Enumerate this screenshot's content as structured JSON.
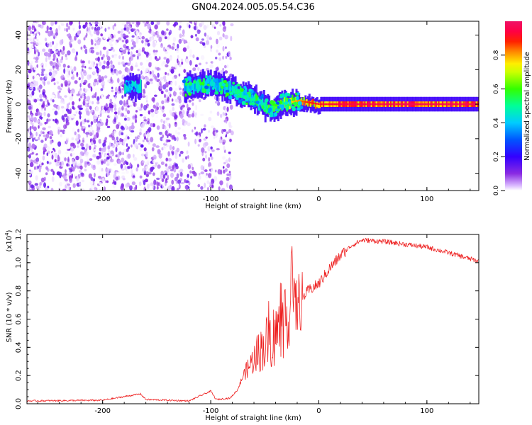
{
  "title": "GN04.2024.005.05.54.C36",
  "chart_data": [
    {
      "type": "heatmap",
      "name": "spectrogram",
      "title": "GN04.2024.005.05.54.C36",
      "xlabel": "Height of straight line (km)",
      "ylabel": "Frequency (Hz)",
      "xlim": [
        -270,
        148
      ],
      "ylim": [
        -50,
        48
      ],
      "x_ticks": [
        "-200",
        "-100",
        "0",
        "100"
      ],
      "x_tick_values": [
        -200,
        -100,
        0,
        100
      ],
      "y_ticks": [
        "40",
        "20",
        "0",
        "-20",
        "-40"
      ],
      "y_tick_values": [
        40,
        20,
        0,
        -20,
        -40
      ],
      "colorbar": {
        "label": "Normalized spectral amplitude",
        "range": [
          0,
          1
        ],
        "ticks": [
          "0.0",
          "0.2",
          "0.4",
          "0.6",
          "0.8"
        ],
        "tick_values": [
          0.0,
          0.2,
          0.4,
          0.6,
          0.8
        ],
        "colormap": "rainbow (white-violet-blue-cyan-green-yellow-orange-red-magenta)"
      },
      "features": {
        "noise_region_x": [
          -270,
          -85
        ],
        "noise_amplitude_range": [
          0.0,
          0.15
        ],
        "signal_trace_x": [
          -180,
          148
        ],
        "signal_center_freq_hz": [
          {
            "x": -175,
            "f": 10
          },
          {
            "x": -120,
            "f": 10
          },
          {
            "x": -100,
            "f": 12
          },
          {
            "x": -80,
            "f": 8
          },
          {
            "x": -60,
            "f": 3
          },
          {
            "x": -45,
            "f": -3
          },
          {
            "x": -35,
            "f": 0
          },
          {
            "x": -20,
            "f": 2
          },
          {
            "x": 0,
            "f": 0
          },
          {
            "x": 148,
            "f": 0
          }
        ],
        "signal_amplitude_trend": [
          {
            "x": -120,
            "a": 0.45
          },
          {
            "x": -80,
            "a": 0.45
          },
          {
            "x": -40,
            "a": 0.6
          },
          {
            "x": -10,
            "a": 0.85
          },
          {
            "x": 20,
            "a": 0.9
          },
          {
            "x": 148,
            "a": 0.95
          }
        ]
      }
    },
    {
      "type": "line",
      "name": "snr",
      "xlabel": "Height of straight line (km)",
      "ylabel": "SNR (10 * v/v)",
      "y_multiplier": "(x10",
      "y_multiplier_exp": "4",
      "xlim": [
        -270,
        148
      ],
      "ylim": [
        0.0,
        1.2
      ],
      "x_ticks": [
        "-200",
        "-100",
        "0",
        "100"
      ],
      "x_tick_values": [
        -200,
        -100,
        0,
        100
      ],
      "y_ticks": [
        "0.0",
        "0.2",
        "0.4",
        "0.6",
        "0.8",
        "1.0",
        "1.2"
      ],
      "y_tick_values": [
        0.0,
        0.2,
        0.4,
        0.6,
        0.8,
        1.0,
        1.2
      ],
      "color": "#ee2222",
      "series": [
        {
          "name": "SNR",
          "points": [
            [
              -270,
              0.02
            ],
            [
              -200,
              0.025
            ],
            [
              -165,
              0.07
            ],
            [
              -160,
              0.03
            ],
            [
              -120,
              0.02
            ],
            [
              -100,
              0.09
            ],
            [
              -95,
              0.03
            ],
            [
              -82,
              0.04
            ],
            [
              -75,
              0.1
            ],
            [
              -70,
              0.2
            ],
            [
              -60,
              0.32
            ],
            [
              -50,
              0.42
            ],
            [
              -40,
              0.5
            ],
            [
              -30,
              0.6
            ],
            [
              -25,
              1.18
            ],
            [
              -20,
              0.7
            ],
            [
              -10,
              0.8
            ],
            [
              0,
              0.85
            ],
            [
              10,
              0.96
            ],
            [
              20,
              1.05
            ],
            [
              30,
              1.12
            ],
            [
              40,
              1.16
            ],
            [
              60,
              1.15
            ],
            [
              80,
              1.13
            ],
            [
              100,
              1.11
            ],
            [
              120,
              1.07
            ],
            [
              148,
              1.01
            ]
          ]
        }
      ]
    }
  ]
}
